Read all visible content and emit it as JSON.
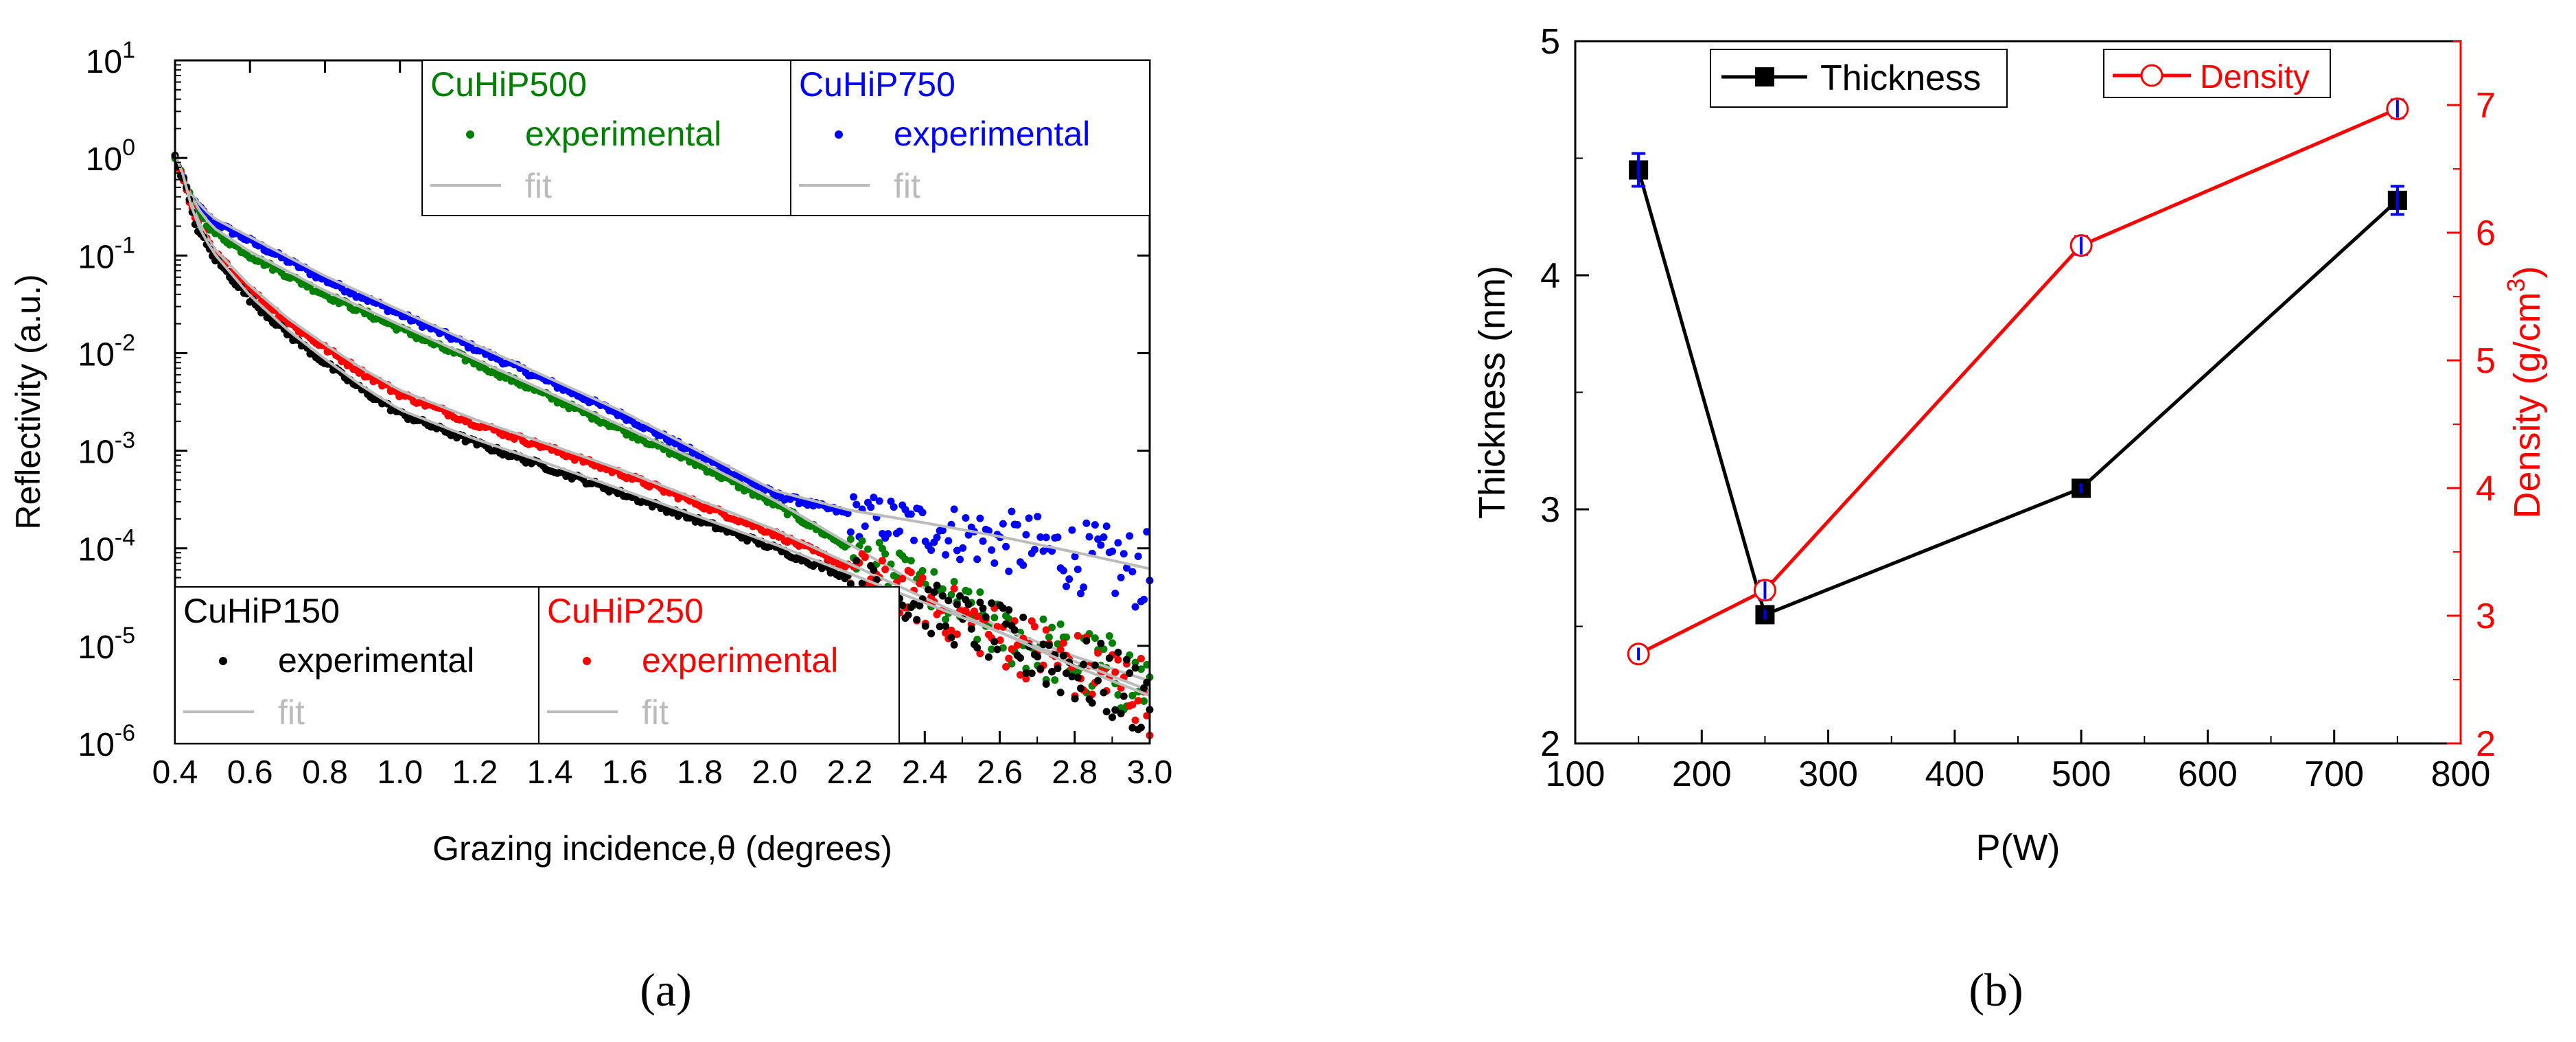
{
  "chart_data": [
    {
      "type": "scatter",
      "panel_label": "(a)",
      "xlabel": "Grazing incidence,θ (degrees)",
      "ylabel": "Reflectivity (a.u.)",
      "xlim": [
        0.4,
        3.0
      ],
      "ylim_log10": [
        -6,
        1
      ],
      "yscale": "log",
      "xticks": [
        "0.4",
        "0.6",
        "0.8",
        "1.0",
        "1.2",
        "1.4",
        "1.6",
        "1.8",
        "2.0",
        "2.2",
        "2.4",
        "2.6",
        "2.8",
        "3.0"
      ],
      "yticks": [
        {
          "base": "10",
          "exp": "1"
        },
        {
          "base": "10",
          "exp": "0"
        },
        {
          "base": "10",
          "exp": "-1"
        },
        {
          "base": "10",
          "exp": "-2"
        },
        {
          "base": "10",
          "exp": "-3"
        },
        {
          "base": "10",
          "exp": "-4"
        },
        {
          "base": "10",
          "exp": "-5"
        },
        {
          "base": "10",
          "exp": "-6"
        }
      ],
      "legend_placement": "top-right and bottom-left boxes",
      "legend_experimental": "experimental",
      "legend_fit": "fit",
      "fit_color": "#bbbbbb",
      "series": [
        {
          "name": "CuHiP150",
          "color": "#000000",
          "x": [
            0.4,
            0.43,
            0.45,
            0.5,
            0.6,
            0.7,
            0.8,
            0.9,
            1.0,
            1.2,
            1.4,
            1.6,
            1.8,
            2.0,
            2.2,
            2.4,
            2.6,
            2.8,
            3.0
          ],
          "log10_y": [
            0.0,
            -0.3,
            -0.65,
            -1.0,
            -1.45,
            -1.8,
            -2.1,
            -2.38,
            -2.62,
            -2.92,
            -3.18,
            -3.45,
            -3.72,
            -4.0,
            -4.3,
            -4.6,
            -4.9,
            -5.25,
            -5.55
          ]
        },
        {
          "name": "CuHiP250",
          "color": "#ff0000",
          "x": [
            0.4,
            0.43,
            0.45,
            0.5,
            0.6,
            0.7,
            0.8,
            0.9,
            1.0,
            1.2,
            1.4,
            1.6,
            1.8,
            2.0,
            2.2,
            2.4,
            2.6,
            2.8,
            3.0
          ],
          "log10_y": [
            0.0,
            -0.3,
            -0.6,
            -0.95,
            -1.35,
            -1.68,
            -1.95,
            -2.2,
            -2.42,
            -2.72,
            -2.98,
            -3.25,
            -3.55,
            -3.85,
            -4.2,
            -4.55,
            -4.9,
            -5.2,
            -5.5
          ]
        },
        {
          "name": "CuHiP500",
          "color": "#008000",
          "x": [
            0.4,
            0.43,
            0.45,
            0.5,
            0.6,
            0.7,
            0.8,
            1.0,
            1.2,
            1.4,
            1.6,
            1.8,
            2.0,
            2.2,
            2.4,
            2.6,
            2.8,
            3.0
          ],
          "log10_y": [
            0.0,
            -0.3,
            -0.5,
            -0.75,
            -1.0,
            -1.2,
            -1.4,
            -1.75,
            -2.1,
            -2.45,
            -2.8,
            -3.15,
            -3.55,
            -4.0,
            -4.45,
            -4.85,
            -5.15,
            -5.4
          ]
        },
        {
          "name": "CuHiP750",
          "color": "#0000ff",
          "x": [
            0.4,
            0.43,
            0.45,
            0.5,
            0.6,
            0.7,
            0.8,
            1.0,
            1.2,
            1.4,
            1.6,
            1.8,
            2.0,
            2.2,
            2.4,
            2.6,
            2.8,
            3.0
          ],
          "log10_y": [
            0.0,
            -0.3,
            -0.45,
            -0.65,
            -0.85,
            -1.05,
            -1.25,
            -1.6,
            -1.95,
            -2.3,
            -2.65,
            -3.05,
            -3.45,
            -3.65,
            -3.78,
            -3.92,
            -4.08,
            -4.25
          ]
        }
      ]
    },
    {
      "type": "line",
      "panel_label": "(b)",
      "xlabel": "P(W)",
      "xlim": [
        100,
        800
      ],
      "xticks": [
        "100",
        "200",
        "300",
        "400",
        "500",
        "600",
        "700",
        "800"
      ],
      "left_axis": {
        "label": "Thickness (nm)",
        "ylim": [
          2,
          5
        ],
        "ticks": [
          "2",
          "3",
          "4",
          "5"
        ],
        "color": "#000000"
      },
      "right_axis": {
        "label_main": "Density (g/cm",
        "label_sup": "3",
        "label_end": ")",
        "ylim": [
          2,
          7.5
        ],
        "ticks": [
          "2",
          "3",
          "4",
          "5",
          "6",
          "7"
        ],
        "color": "#ff0000"
      },
      "errorbar_color": "#0000ff",
      "series": [
        {
          "name": "Thickness",
          "axis": "left",
          "color": "#000000",
          "marker": "filled-square",
          "x": [
            150,
            250,
            500,
            750
          ],
          "y": [
            4.45,
            2.55,
            3.09,
            4.32
          ],
          "err": [
            0.07,
            0.02,
            0.02,
            0.06
          ]
        },
        {
          "name": "Density",
          "axis": "right",
          "color": "#ff0000",
          "marker": "open-circle",
          "x": [
            150,
            250,
            500,
            750
          ],
          "y": [
            2.7,
            3.2,
            5.9,
            6.97
          ],
          "err": [
            0.05,
            0.07,
            0.07,
            0.07
          ]
        }
      ]
    }
  ]
}
